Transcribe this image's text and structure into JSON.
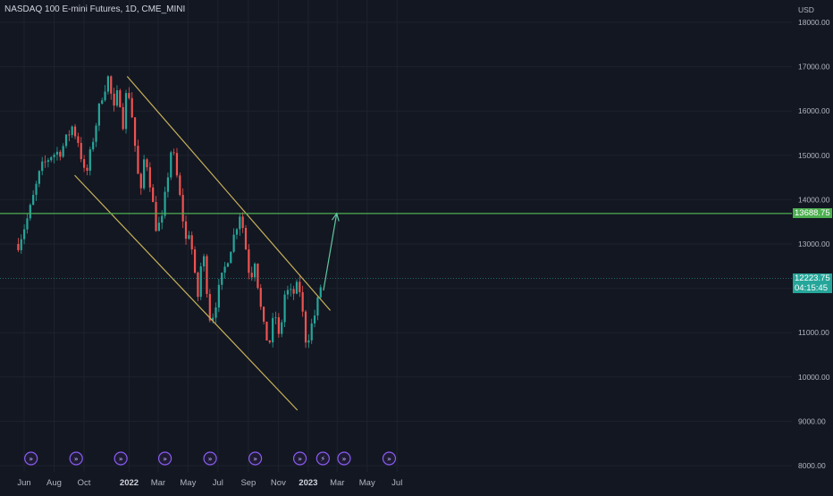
{
  "header": {
    "title": "NASDAQ 100 E-mini Futures, 1D, CME_MINI"
  },
  "currency": "USD",
  "colors": {
    "background": "#131722",
    "grid": "#1e222d",
    "candle_up": "#26a69a",
    "candle_down": "#ef5350",
    "channel": "#c8b25a",
    "horizontal_level": "#4caf50",
    "arrow": "#5fc9a0",
    "event_icon": "#8b5cf6"
  },
  "chart_data": {
    "type": "candlestick",
    "title": "NASDAQ 100 E-mini Futures, 1D, CME_MINI",
    "ylim": [
      8000,
      18000
    ],
    "y_ticks": [
      "18000.00",
      "17000.00",
      "16000.00",
      "15000.00",
      "14000.00",
      "13000.00",
      "12000.00",
      "11000.00",
      "10000.00",
      "9000.00",
      "8000.00"
    ],
    "x_ticks": [
      {
        "label": "Jun",
        "date": "2021-06-01",
        "bold": false
      },
      {
        "label": "Aug",
        "date": "2021-08-01",
        "bold": false
      },
      {
        "label": "Oct",
        "date": "2021-10-01",
        "bold": false
      },
      {
        "label": "2022",
        "date": "2022-01-01",
        "bold": true
      },
      {
        "label": "Mar",
        "date": "2022-03-01",
        "bold": false
      },
      {
        "label": "May",
        "date": "2022-05-01",
        "bold": false
      },
      {
        "label": "Jul",
        "date": "2022-07-01",
        "bold": false
      },
      {
        "label": "Sep",
        "date": "2022-09-01",
        "bold": false
      },
      {
        "label": "Nov",
        "date": "2022-11-01",
        "bold": false
      },
      {
        "label": "2023",
        "date": "2023-01-01",
        "bold": true
      },
      {
        "label": "Mar",
        "date": "2023-03-01",
        "bold": false
      },
      {
        "label": "May",
        "date": "2023-05-01",
        "bold": false
      },
      {
        "label": "Jul",
        "date": "2023-07-01",
        "bold": false
      }
    ],
    "price_path": [
      [
        "2021-05-20",
        13000
      ],
      [
        "2021-06-10",
        13650
      ],
      [
        "2021-07-05",
        14700
      ],
      [
        "2021-07-25",
        15000
      ],
      [
        "2021-08-15",
        15100
      ],
      [
        "2021-09-07",
        15650
      ],
      [
        "2021-09-20",
        15300
      ],
      [
        "2021-10-04",
        14450
      ],
      [
        "2021-10-20",
        15400
      ],
      [
        "2021-11-05",
        16300
      ],
      [
        "2021-11-19",
        16750
      ],
      [
        "2021-12-01",
        16000
      ],
      [
        "2021-12-10",
        16500
      ],
      [
        "2021-12-20",
        15700
      ],
      [
        "2021-12-28",
        16600
      ],
      [
        "2022-01-05",
        16100
      ],
      [
        "2022-01-24",
        14000
      ],
      [
        "2022-02-02",
        15100
      ],
      [
        "2022-02-14",
        14300
      ],
      [
        "2022-02-24",
        13400
      ],
      [
        "2022-03-08",
        13450
      ],
      [
        "2022-03-29",
        15250
      ],
      [
        "2022-04-10",
        14400
      ],
      [
        "2022-04-29",
        12900
      ],
      [
        "2022-05-04",
        13400
      ],
      [
        "2022-05-20",
        11700
      ],
      [
        "2022-05-31",
        12900
      ],
      [
        "2022-06-16",
        11200
      ],
      [
        "2022-07-07",
        12150
      ],
      [
        "2022-07-29",
        13000
      ],
      [
        "2022-08-16",
        13750
      ],
      [
        "2022-09-06",
        12100
      ],
      [
        "2022-09-12",
        12850
      ],
      [
        "2022-09-30",
        11200
      ],
      [
        "2022-10-13",
        10700
      ],
      [
        "2022-10-25",
        11500
      ],
      [
        "2022-11-03",
        10800
      ],
      [
        "2022-11-15",
        11950
      ],
      [
        "2022-11-30",
        11850
      ],
      [
        "2022-12-13",
        12100
      ],
      [
        "2022-12-28",
        10750
      ],
      [
        "2023-01-18",
        11550
      ],
      [
        "2023-01-25",
        12000
      ],
      [
        "2023-02-01",
        12223.75
      ]
    ],
    "drawings": {
      "channel_upper": [
        [
          "2021-12-28",
          16780
        ],
        [
          "2023-02-15",
          11500
        ]
      ],
      "channel_lower": [
        [
          "2021-09-12",
          14550
        ],
        [
          "2022-12-10",
          9250
        ]
      ],
      "horizontal_level": 13688.75,
      "current_price_line": 12223.75,
      "projection_arrow": [
        [
          "2023-02-01",
          11950
        ],
        [
          "2023-02-28",
          13688.75
        ]
      ]
    },
    "event_markers": [
      "2021-06-15",
      "2021-09-15",
      "2021-12-15",
      "2022-03-15",
      "2022-06-15",
      "2022-09-15",
      "2022-12-15",
      "2023-01-31",
      "2023-03-15",
      "2023-06-15"
    ],
    "price_tags": [
      {
        "label": "13688.75",
        "value": 13688.75
      },
      {
        "label": "12223.75",
        "value": 12223.75,
        "countdown": "04:15:45"
      }
    ]
  }
}
